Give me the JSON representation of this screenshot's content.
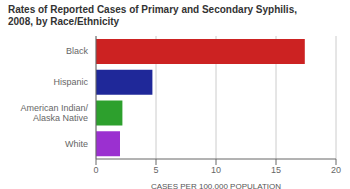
{
  "chart_data": {
    "type": "bar",
    "title": "Rates of Reported Cases of Primary and Secondary Syphilis,\n2008, by Race/Ethnicity",
    "orientation": "horizontal",
    "categories": [
      "White",
      "American Indian/\nAlaska Native",
      "Hispanic",
      "Black"
    ],
    "values": [
      2.0,
      2.2,
      4.7,
      17.4
    ],
    "colors": [
      "#9b30d0",
      "#2da02d",
      "#1f2899",
      "#cc2222"
    ],
    "xlabel": "CASES PER 100,000 POPULATION",
    "xlim": [
      0,
      20
    ],
    "xticks": [
      0,
      5,
      10,
      15,
      20
    ],
    "grid": true
  }
}
